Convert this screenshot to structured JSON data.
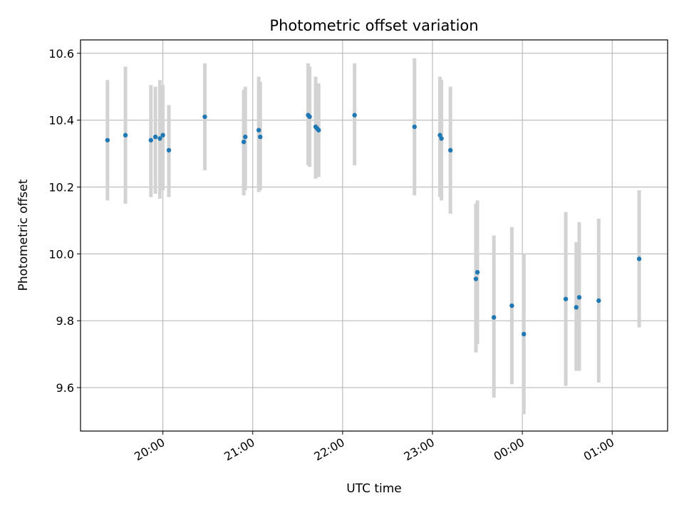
{
  "chart_data": {
    "type": "scatter",
    "title": "Photometric offset variation",
    "xlabel": "UTC time",
    "ylabel": "Photometric offset",
    "x_axis": "time",
    "xlim": [
      "19:05",
      "01:37"
    ],
    "ylim": [
      9.47,
      10.64
    ],
    "x_ticks": [
      "20:00",
      "21:00",
      "22:00",
      "23:00",
      "00:00",
      "01:00"
    ],
    "y_ticks": [
      9.6,
      9.8,
      10.0,
      10.2,
      10.4,
      10.6
    ],
    "grid": true,
    "marker_color": "#1f77b4",
    "errorbar_color": "#d3d3d3",
    "points": [
      {
        "time": "19:23",
        "y": 10.34,
        "low": 10.16,
        "high": 10.52
      },
      {
        "time": "19:35",
        "y": 10.355,
        "low": 10.15,
        "high": 10.56
      },
      {
        "time": "19:52",
        "y": 10.34,
        "low": 10.17,
        "high": 10.505
      },
      {
        "time": "19:55",
        "y": 10.35,
        "low": 10.18,
        "high": 10.5
      },
      {
        "time": "19:58",
        "y": 10.345,
        "low": 10.165,
        "high": 10.52
      },
      {
        "time": "20:00",
        "y": 10.355,
        "low": 10.19,
        "high": 10.505
      },
      {
        "time": "20:04",
        "y": 10.31,
        "low": 10.17,
        "high": 10.445
      },
      {
        "time": "20:28",
        "y": 10.41,
        "low": 10.25,
        "high": 10.57
      },
      {
        "time": "20:54",
        "y": 10.335,
        "low": 10.175,
        "high": 10.49
      },
      {
        "time": "20:55",
        "y": 10.35,
        "low": 10.19,
        "high": 10.5
      },
      {
        "time": "21:04",
        "y": 10.37,
        "low": 10.185,
        "high": 10.53
      },
      {
        "time": "21:05",
        "y": 10.35,
        "low": 10.19,
        "high": 10.515
      },
      {
        "time": "21:37",
        "y": 10.415,
        "low": 10.265,
        "high": 10.57
      },
      {
        "time": "21:38",
        "y": 10.41,
        "low": 10.26,
        "high": 10.56
      },
      {
        "time": "21:42",
        "y": 10.38,
        "low": 10.225,
        "high": 10.53
      },
      {
        "time": "21:43",
        "y": 10.375,
        "low": 10.23,
        "high": 10.51
      },
      {
        "time": "21:44",
        "y": 10.37,
        "low": 10.23,
        "high": 10.51
      },
      {
        "time": "22:08",
        "y": 10.415,
        "low": 10.265,
        "high": 10.57
      },
      {
        "time": "22:48",
        "y": 10.38,
        "low": 10.175,
        "high": 10.585
      },
      {
        "time": "23:05",
        "y": 10.355,
        "low": 10.17,
        "high": 10.53
      },
      {
        "time": "23:06",
        "y": 10.345,
        "low": 10.16,
        "high": 10.52
      },
      {
        "time": "23:12",
        "y": 10.31,
        "low": 10.12,
        "high": 10.5
      },
      {
        "time": "23:29",
        "y": 9.925,
        "low": 9.705,
        "high": 10.15
      },
      {
        "time": "23:30",
        "y": 9.945,
        "low": 9.73,
        "high": 10.16
      },
      {
        "time": "23:41",
        "y": 9.81,
        "low": 9.57,
        "high": 10.055
      },
      {
        "time": "23:53",
        "y": 9.845,
        "low": 9.61,
        "high": 10.08
      },
      {
        "time": "00:01",
        "y": 9.76,
        "low": 9.52,
        "high": 10.0
      },
      {
        "time": "00:29",
        "y": 9.865,
        "low": 9.605,
        "high": 10.125
      },
      {
        "time": "00:36",
        "y": 9.84,
        "low": 9.65,
        "high": 10.035
      },
      {
        "time": "00:38",
        "y": 9.87,
        "low": 9.65,
        "high": 10.095
      },
      {
        "time": "00:51",
        "y": 9.86,
        "low": 9.615,
        "high": 10.105
      },
      {
        "time": "01:18",
        "y": 9.985,
        "low": 9.78,
        "high": 10.19
      }
    ]
  }
}
